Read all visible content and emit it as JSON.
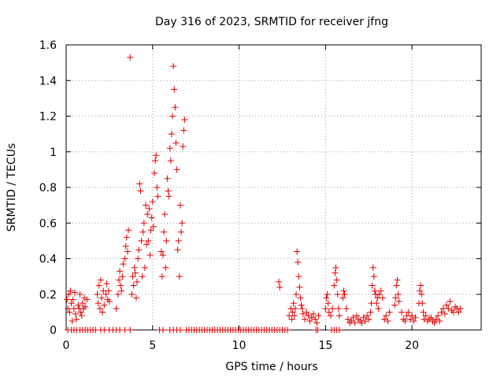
{
  "chart_data": {
    "type": "scatter",
    "title": "Day 316 of 2023, SRMTID for receiver jfng",
    "xlabel": "GPS time / hours",
    "ylabel": "SRMTID / TECUs",
    "xlim": [
      0,
      24
    ],
    "ylim": [
      0,
      1.6
    ],
    "xticks": [
      0,
      5,
      10,
      15,
      20
    ],
    "xtick_labels": [
      "0",
      "5",
      "10",
      "15",
      "20"
    ],
    "yticks": [
      0,
      0.2,
      0.4,
      0.6,
      0.8,
      1,
      1.2,
      1.4,
      1.6
    ],
    "ytick_labels": [
      "0",
      "0.2",
      "0.4",
      "0.6",
      "0.8",
      "1",
      "1.2",
      "1.4",
      "1.6"
    ],
    "grid": true,
    "marker": "+",
    "series": [
      {
        "name": "SRMTID",
        "color": "#e00000",
        "points": [
          [
            0.05,
            0.17
          ],
          [
            0.1,
            0.12
          ],
          [
            0.15,
            0.2
          ],
          [
            0.2,
            0.1
          ],
          [
            0.25,
            0.22
          ],
          [
            0.3,
            0.15
          ],
          [
            0.35,
            0.05
          ],
          [
            0.4,
            0.17
          ],
          [
            0.45,
            0.12
          ],
          [
            0.5,
            0.21
          ],
          [
            0.55,
            0.09
          ],
          [
            0.6,
            0.06
          ],
          [
            0.7,
            0.14
          ],
          [
            0.75,
            0.12
          ],
          [
            0.8,
            0.2
          ],
          [
            0.85,
            0.1
          ],
          [
            0.9,
            0.08
          ],
          [
            0.95,
            0.15
          ],
          [
            1.0,
            0.12
          ],
          [
            1.05,
            0.18
          ],
          [
            1.1,
            0.13
          ],
          [
            1.2,
            0.17
          ],
          [
            1.8,
            0.2
          ],
          [
            1.85,
            0.15
          ],
          [
            1.9,
            0.25
          ],
          [
            1.95,
            0.12
          ],
          [
            2.0,
            0.28
          ],
          [
            2.05,
            0.18
          ],
          [
            2.1,
            0.1
          ],
          [
            2.15,
            0.22
          ],
          [
            2.2,
            0.14
          ],
          [
            2.3,
            0.2
          ],
          [
            2.35,
            0.26
          ],
          [
            2.4,
            0.17
          ],
          [
            2.45,
            0.22
          ],
          [
            2.5,
            0.16
          ],
          [
            2.9,
            0.12
          ],
          [
            3.0,
            0.2
          ],
          [
            3.05,
            0.28
          ],
          [
            3.1,
            0.33
          ],
          [
            3.15,
            0.25
          ],
          [
            3.2,
            0.22
          ],
          [
            3.25,
            0.3
          ],
          [
            3.3,
            0.37
          ],
          [
            3.4,
            0.4
          ],
          [
            3.45,
            0.47
          ],
          [
            3.5,
            0.52
          ],
          [
            3.55,
            0.44
          ],
          [
            3.6,
            0.56
          ],
          [
            3.7,
            1.53
          ],
          [
            3.8,
            0.2
          ],
          [
            3.85,
            0.3
          ],
          [
            3.9,
            0.25
          ],
          [
            3.95,
            0.35
          ],
          [
            4.0,
            0.32
          ],
          [
            4.05,
            0.18
          ],
          [
            4.1,
            0.27
          ],
          [
            4.15,
            0.4
          ],
          [
            4.2,
            0.45
          ],
          [
            4.25,
            0.82
          ],
          [
            4.3,
            0.78
          ],
          [
            4.35,
            0.5
          ],
          [
            4.4,
            0.3
          ],
          [
            4.45,
            0.55
          ],
          [
            4.5,
            0.6
          ],
          [
            4.55,
            0.35
          ],
          [
            4.6,
            0.7
          ],
          [
            4.65,
            0.48
          ],
          [
            4.7,
            0.65
          ],
          [
            4.75,
            0.5
          ],
          [
            4.8,
            0.68
          ],
          [
            4.85,
            0.42
          ],
          [
            4.9,
            0.56
          ],
          [
            4.95,
            0.63
          ],
          [
            5.0,
            0.72
          ],
          [
            5.05,
            0.58
          ],
          [
            5.1,
            0.88
          ],
          [
            5.15,
            0.95
          ],
          [
            5.2,
            0.98
          ],
          [
            5.25,
            0.8
          ],
          [
            5.3,
            0.75
          ],
          [
            5.5,
            0.44
          ],
          [
            5.55,
            0.3
          ],
          [
            5.6,
            0.42
          ],
          [
            5.65,
            0.55
          ],
          [
            5.7,
            0.65
          ],
          [
            5.75,
            0.35
          ],
          [
            5.8,
            0.5
          ],
          [
            5.85,
            0.85
          ],
          [
            5.9,
            0.78
          ],
          [
            5.95,
            0.75
          ],
          [
            6.0,
            1.02
          ],
          [
            6.05,
            0.95
          ],
          [
            6.1,
            1.1
          ],
          [
            6.15,
            1.2
          ],
          [
            6.2,
            1.48
          ],
          [
            6.25,
            1.35
          ],
          [
            6.3,
            1.25
          ],
          [
            6.35,
            1.05
          ],
          [
            6.4,
            0.9
          ],
          [
            6.45,
            0.45
          ],
          [
            6.5,
            0.5
          ],
          [
            6.55,
            0.3
          ],
          [
            6.6,
            0.7
          ],
          [
            6.65,
            0.55
          ],
          [
            6.7,
            0.6
          ],
          [
            6.75,
            1.03
          ],
          [
            6.8,
            1.12
          ],
          [
            6.85,
            1.18
          ],
          [
            12.3,
            0.27
          ],
          [
            12.35,
            0.24
          ],
          [
            12.9,
            0.08
          ],
          [
            13.0,
            0.12
          ],
          [
            13.05,
            0.06
          ],
          [
            13.1,
            0.1
          ],
          [
            13.15,
            0.15
          ],
          [
            13.2,
            0.08
          ],
          [
            13.25,
            0.12
          ],
          [
            13.3,
            0.2
          ],
          [
            13.35,
            0.44
          ],
          [
            13.4,
            0.38
          ],
          [
            13.45,
            0.3
          ],
          [
            13.5,
            0.24
          ],
          [
            13.55,
            0.18
          ],
          [
            13.6,
            0.14
          ],
          [
            13.65,
            0.12
          ],
          [
            13.7,
            0.09
          ],
          [
            13.8,
            0.06
          ],
          [
            13.9,
            0.1
          ],
          [
            14.0,
            0.08
          ],
          [
            14.1,
            0.05
          ],
          [
            14.2,
            0.07
          ],
          [
            14.3,
            0.09
          ],
          [
            14.4,
            0.06
          ],
          [
            14.5,
            0.04
          ],
          [
            14.6,
            0.08
          ],
          [
            15.0,
            0.12
          ],
          [
            15.05,
            0.18
          ],
          [
            15.1,
            0.2
          ],
          [
            15.15,
            0.15
          ],
          [
            15.2,
            0.1
          ],
          [
            15.3,
            0.08
          ],
          [
            15.4,
            0.12
          ],
          [
            15.5,
            0.25
          ],
          [
            15.55,
            0.32
          ],
          [
            15.6,
            0.35
          ],
          [
            15.65,
            0.28
          ],
          [
            15.7,
            0.2
          ],
          [
            15.75,
            0.12
          ],
          [
            15.8,
            0.08
          ],
          [
            16.0,
            0.18
          ],
          [
            16.05,
            0.22
          ],
          [
            16.1,
            0.2
          ],
          [
            16.2,
            0.12
          ],
          [
            16.3,
            0.06
          ],
          [
            16.4,
            0.04
          ],
          [
            16.5,
            0.05
          ],
          [
            16.6,
            0.07
          ],
          [
            16.7,
            0.04
          ],
          [
            16.8,
            0.08
          ],
          [
            16.9,
            0.06
          ],
          [
            17.0,
            0.05
          ],
          [
            17.1,
            0.04
          ],
          [
            17.2,
            0.07
          ],
          [
            17.3,
            0.05
          ],
          [
            17.4,
            0.08
          ],
          [
            17.5,
            0.06
          ],
          [
            17.6,
            0.1
          ],
          [
            17.65,
            0.15
          ],
          [
            17.7,
            0.25
          ],
          [
            17.75,
            0.35
          ],
          [
            17.8,
            0.3
          ],
          [
            17.85,
            0.22
          ],
          [
            17.9,
            0.2
          ],
          [
            17.95,
            0.15
          ],
          [
            18.0,
            0.18
          ],
          [
            18.05,
            0.12
          ],
          [
            18.1,
            0.2
          ],
          [
            18.2,
            0.22
          ],
          [
            18.3,
            0.18
          ],
          [
            18.4,
            0.06
          ],
          [
            18.5,
            0.08
          ],
          [
            18.6,
            0.05
          ],
          [
            18.7,
            0.1
          ],
          [
            19.0,
            0.14
          ],
          [
            19.05,
            0.18
          ],
          [
            19.1,
            0.25
          ],
          [
            19.15,
            0.28
          ],
          [
            19.2,
            0.2
          ],
          [
            19.25,
            0.16
          ],
          [
            19.4,
            0.1
          ],
          [
            19.5,
            0.06
          ],
          [
            19.6,
            0.05
          ],
          [
            19.7,
            0.08
          ],
          [
            19.8,
            0.1
          ],
          [
            19.9,
            0.06
          ],
          [
            20.0,
            0.08
          ],
          [
            20.1,
            0.05
          ],
          [
            20.2,
            0.07
          ],
          [
            20.4,
            0.15
          ],
          [
            20.45,
            0.22
          ],
          [
            20.5,
            0.25
          ],
          [
            20.55,
            0.2
          ],
          [
            20.6,
            0.15
          ],
          [
            20.65,
            0.1
          ],
          [
            20.7,
            0.06
          ],
          [
            20.8,
            0.08
          ],
          [
            20.9,
            0.05
          ],
          [
            21.0,
            0.06
          ],
          [
            21.1,
            0.07
          ],
          [
            21.2,
            0.05
          ],
          [
            21.3,
            0.04
          ],
          [
            21.4,
            0.06
          ],
          [
            21.5,
            0.08
          ],
          [
            21.6,
            0.05
          ],
          [
            21.7,
            0.1
          ],
          [
            21.8,
            0.12
          ],
          [
            21.9,
            0.09
          ],
          [
            22.0,
            0.14
          ],
          [
            22.1,
            0.12
          ],
          [
            22.2,
            0.16
          ],
          [
            22.3,
            0.11
          ],
          [
            22.4,
            0.1
          ],
          [
            22.5,
            0.13
          ],
          [
            22.6,
            0.12
          ],
          [
            22.7,
            0.1
          ],
          [
            22.8,
            0.12
          ],
          [
            0.1,
            0
          ],
          [
            0.3,
            0
          ],
          [
            0.45,
            0
          ],
          [
            0.6,
            0
          ],
          [
            0.8,
            0
          ],
          [
            0.95,
            0
          ],
          [
            1.1,
            0
          ],
          [
            1.25,
            0
          ],
          [
            1.4,
            0
          ],
          [
            1.55,
            0
          ],
          [
            1.7,
            0
          ],
          [
            2.0,
            0
          ],
          [
            2.2,
            0
          ],
          [
            2.5,
            0
          ],
          [
            2.7,
            0
          ],
          [
            2.9,
            0
          ],
          [
            3.1,
            0
          ],
          [
            3.4,
            0
          ],
          [
            3.7,
            0
          ],
          [
            5.4,
            0
          ],
          [
            5.6,
            0
          ],
          [
            6.0,
            0
          ],
          [
            6.2,
            0
          ],
          [
            6.4,
            0
          ],
          [
            6.6,
            0
          ],
          [
            6.95,
            0
          ],
          [
            7.1,
            0
          ],
          [
            7.25,
            0
          ],
          [
            7.4,
            0
          ],
          [
            7.55,
            0
          ],
          [
            7.7,
            0
          ],
          [
            7.85,
            0
          ],
          [
            8.0,
            0
          ],
          [
            8.15,
            0
          ],
          [
            8.3,
            0
          ],
          [
            8.45,
            0
          ],
          [
            8.6,
            0
          ],
          [
            8.75,
            0
          ],
          [
            8.9,
            0
          ],
          [
            9.05,
            0
          ],
          [
            9.2,
            0
          ],
          [
            9.35,
            0
          ],
          [
            9.5,
            0
          ],
          [
            9.65,
            0
          ],
          [
            9.8,
            0
          ],
          [
            9.95,
            0
          ],
          [
            10.1,
            0
          ],
          [
            10.25,
            0
          ],
          [
            10.4,
            0
          ],
          [
            10.55,
            0
          ],
          [
            10.7,
            0
          ],
          [
            10.85,
            0
          ],
          [
            11.0,
            0
          ],
          [
            11.15,
            0
          ],
          [
            11.3,
            0
          ],
          [
            11.45,
            0
          ],
          [
            11.6,
            0
          ],
          [
            11.75,
            0
          ],
          [
            11.9,
            0
          ],
          [
            12.05,
            0
          ],
          [
            12.2,
            0
          ],
          [
            12.35,
            0
          ],
          [
            12.5,
            0
          ],
          [
            12.65,
            0
          ],
          [
            12.8,
            0
          ],
          [
            14.45,
            0
          ],
          [
            14.55,
            0
          ],
          [
            15.35,
            0
          ],
          [
            15.5,
            0
          ],
          [
            15.65,
            0
          ],
          [
            15.8,
            0
          ]
        ]
      }
    ]
  }
}
